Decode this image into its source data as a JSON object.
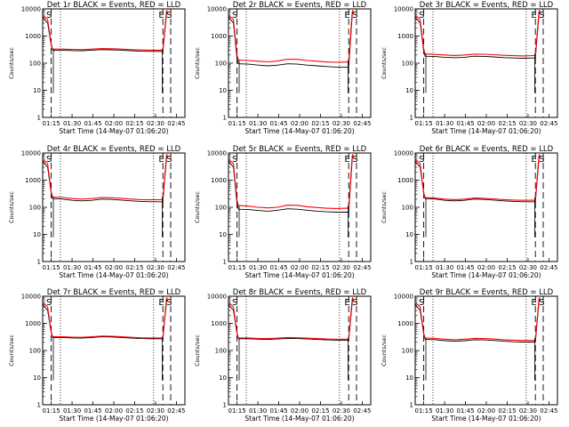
{
  "chart_data": {
    "type": "line",
    "shared": {
      "xlabel": "Start Time (14-May-07 01:06:20)",
      "ylabel": "Counts/sec",
      "x_ticks": [
        "01:15",
        "01:30",
        "01:45",
        "02:00",
        "02:15",
        "02:30",
        "02:45"
      ],
      "y_scale": "log",
      "ylim": [
        1,
        10000
      ],
      "y_ticks": [
        "1",
        "10",
        "100",
        "1000",
        "10000"
      ],
      "markers": [
        "S",
        "E",
        "S"
      ],
      "colors": {
        "events": "#000000",
        "lld": "#ff0000"
      }
    },
    "panels": [
      {
        "title": "Det 1r BLACK = Events, RED = LLD",
        "series": [
          {
            "values": [
              300,
              300,
              290,
              285,
              300,
              315,
              310,
              300,
              285,
              275,
              270,
              270
            ]
          },
          {
            "values": [
              330,
              330,
              320,
              315,
              330,
              345,
              340,
              330,
              315,
              305,
              300,
              300
            ]
          }
        ]
      },
      {
        "title": "Det 2r BLACK = Events, RED = LLD",
        "series": [
          {
            "values": [
              95,
              92,
              85,
              80,
              85,
              95,
              92,
              85,
              80,
              75,
              72,
              72
            ]
          },
          {
            "values": [
              130,
              125,
              118,
              112,
              120,
              140,
              138,
              125,
              118,
              110,
              108,
              110
            ]
          }
        ]
      },
      {
        "title": "Det 3r BLACK = Events, RED = LLD",
        "series": [
          {
            "values": [
              180,
              175,
              165,
              158,
              165,
              180,
              178,
              170,
              160,
              155,
              152,
              155
            ]
          },
          {
            "values": [
              220,
              210,
              200,
              192,
              200,
              215,
              212,
              205,
              195,
              188,
              185,
              190
            ]
          }
        ]
      },
      {
        "title": "Det 4r BLACK = Events, RED = LLD",
        "series": [
          {
            "values": [
              210,
              200,
              180,
              172,
              180,
              200,
              195,
              185,
              172,
              165,
              160,
              160
            ]
          },
          {
            "values": [
              240,
              230,
              210,
              200,
              210,
              230,
              225,
              215,
              200,
              192,
              188,
              190
            ]
          }
        ]
      },
      {
        "title": "Det 5r BLACK = Events, RED = LLD",
        "series": [
          {
            "values": [
              85,
              82,
              76,
              72,
              78,
              88,
              85,
              78,
              72,
              68,
              66,
              66
            ]
          },
          {
            "values": [
              115,
              110,
              100,
              95,
              100,
              120,
              118,
              105,
              98,
              92,
              90,
              92
            ]
          }
        ]
      },
      {
        "title": "Det 6r BLACK = Events, RED = LLD",
        "series": [
          {
            "values": [
              210,
              200,
              180,
              172,
              180,
              200,
              195,
              185,
              172,
              165,
              160,
              160
            ]
          },
          {
            "values": [
              230,
              220,
              200,
              192,
              200,
              220,
              215,
              205,
              192,
              185,
              180,
              182
            ]
          }
        ]
      },
      {
        "title": "Det 7r BLACK = Events, RED = LLD",
        "series": [
          {
            "values": [
              300,
              300,
              290,
              285,
              300,
              320,
              315,
              300,
              285,
              275,
              270,
              270
            ]
          },
          {
            "values": [
              320,
              320,
              310,
              305,
              320,
              340,
              335,
              320,
              305,
              295,
              290,
              290
            ]
          }
        ]
      },
      {
        "title": "Det 8r BLACK = Events, RED = LLD",
        "series": [
          {
            "values": [
              270,
              270,
              260,
              255,
              265,
              280,
              275,
              265,
              255,
              245,
              240,
              240
            ]
          },
          {
            "values": [
              290,
              290,
              280,
              275,
              285,
              300,
              295,
              285,
              275,
              265,
              260,
              260
            ]
          }
        ]
      },
      {
        "title": "Det 9r BLACK = Events, RED = LLD",
        "series": [
          {
            "values": [
              260,
              250,
              230,
              220,
              230,
              250,
              245,
              235,
              220,
              210,
              205,
              205
            ]
          },
          {
            "values": [
              290,
              280,
              260,
              250,
              260,
              280,
              275,
              265,
              250,
              240,
              235,
              235
            ]
          }
        ]
      }
    ]
  }
}
